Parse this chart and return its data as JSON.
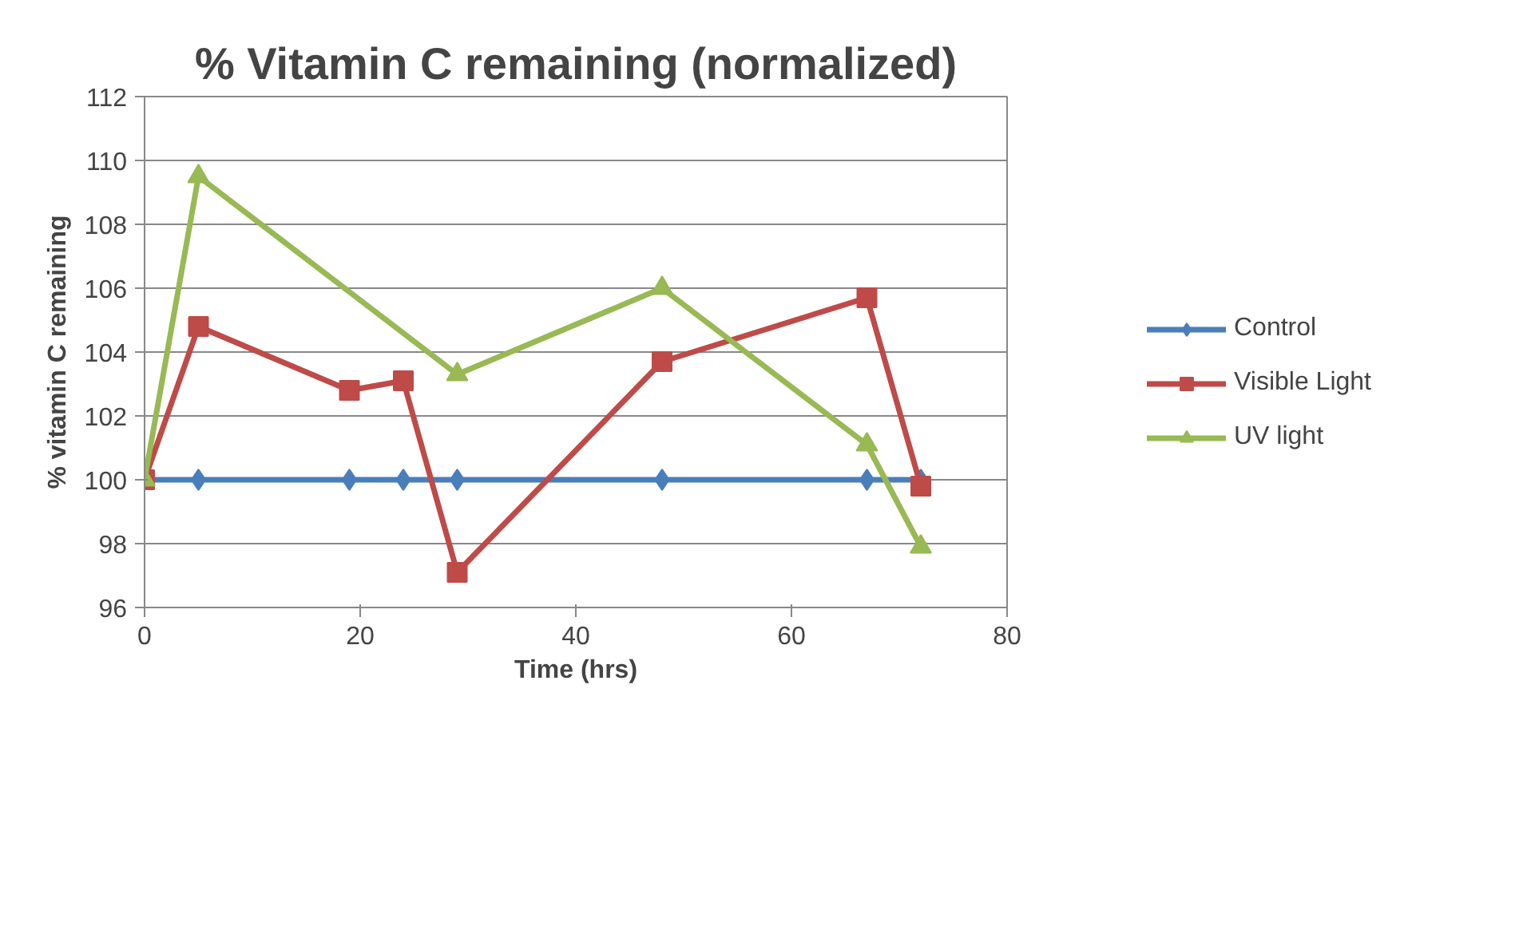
{
  "chart_data": {
    "type": "line",
    "title": "% Vitamin C remaining (normalized)",
    "xlabel": "Time (hrs)",
    "ylabel": "% vitamin C remaining",
    "xlim": [
      0,
      80
    ],
    "xticks": [
      0,
      20,
      40,
      60,
      80
    ],
    "ylim": [
      96,
      112
    ],
    "yticks": [
      96,
      98,
      100,
      102,
      104,
      106,
      108,
      110,
      112
    ],
    "grid": "y",
    "legend": "right",
    "line_style": "solid",
    "series": [
      {
        "name": "Control",
        "color": "#4a7ebb",
        "marker": "diamond",
        "x": [
          0,
          5,
          19,
          24,
          29,
          48,
          67,
          72
        ],
        "values": [
          100,
          100,
          100,
          100,
          100,
          100,
          100,
          100
        ]
      },
      {
        "name": "Visible Light",
        "color": "#be4b48",
        "marker": "square",
        "x": [
          0,
          5,
          19,
          24,
          29,
          48,
          67,
          72
        ],
        "values": [
          100,
          104.8,
          102.8,
          103.1,
          97.1,
          103.7,
          105.7,
          99.8
        ]
      },
      {
        "name": "UV light",
        "color": "#98b954",
        "marker": "triangle",
        "x": [
          0,
          5,
          29,
          48,
          67,
          72
        ],
        "values": [
          100,
          109.5,
          103.3,
          106.0,
          101.1,
          97.9
        ]
      }
    ]
  }
}
